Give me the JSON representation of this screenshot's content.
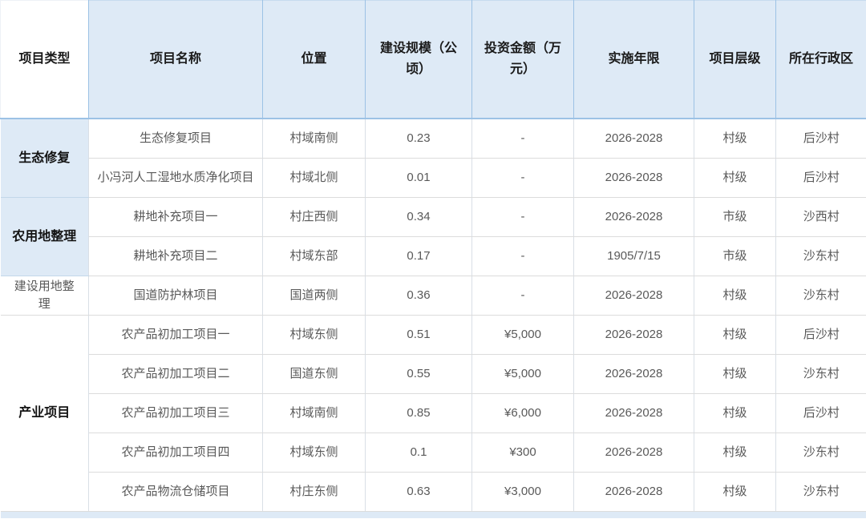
{
  "colors": {
    "header_bg": "#deeaf6",
    "header_border": "#9cc2e5",
    "grid_border": "#d9dfe6",
    "header_text": "#1a1a1a",
    "body_text": "#595959"
  },
  "table": {
    "columns": [
      "项目类型",
      "项目名称",
      "位置",
      "建设规模（公顷）",
      "投资金额（万元）",
      "实施年限",
      "项目层级",
      "所在行政区"
    ],
    "groups": [
      {
        "type": "生态修复",
        "background": "blue",
        "bold": true,
        "rows": [
          {
            "name": "生态修复项目",
            "location": "村域南侧",
            "scale": "0.23",
            "investment": "-",
            "period": "2026-2028",
            "level": "村级",
            "district": "后沙村"
          },
          {
            "name": "小冯河人工湿地水质净化项目",
            "location": "村域北侧",
            "scale": "0.01",
            "investment": "-",
            "period": "2026-2028",
            "level": "村级",
            "district": "后沙村"
          }
        ]
      },
      {
        "type": "农用地整理",
        "background": "blue",
        "bold": true,
        "rows": [
          {
            "name": "耕地补充项目一",
            "location": "村庄西侧",
            "scale": "0.34",
            "investment": "-",
            "period": "2026-2028",
            "level": "市级",
            "district": "沙西村"
          },
          {
            "name": "耕地补充项目二",
            "location": "村域东部",
            "scale": "0.17",
            "investment": "-",
            "period": "1905/7/15",
            "level": "市级",
            "district": "沙东村"
          }
        ]
      },
      {
        "type": "建设用地整理",
        "background": "white",
        "bold": false,
        "rows": [
          {
            "name": "国道防护林项目",
            "location": "国道两侧",
            "scale": "0.36",
            "investment": "-",
            "period": "2026-2028",
            "level": "村级",
            "district": "沙东村"
          }
        ]
      },
      {
        "type": "产业项目",
        "background": "white",
        "bold": true,
        "rows": [
          {
            "name": "农产品初加工项目一",
            "location": "村域东侧",
            "scale": "0.51",
            "investment": "¥5,000",
            "period": "2026-2028",
            "level": "村级",
            "district": "后沙村"
          },
          {
            "name": "农产品初加工项目二",
            "location": "国道东侧",
            "scale": "0.55",
            "investment": "¥5,000",
            "period": "2026-2028",
            "level": "村级",
            "district": "沙东村"
          },
          {
            "name": "农产品初加工项目三",
            "location": "村域南侧",
            "scale": "0.85",
            "investment": "¥6,000",
            "period": "2026-2028",
            "level": "村级",
            "district": "后沙村"
          },
          {
            "name": "农产品初加工项目四",
            "location": "村域东侧",
            "scale": "0.1",
            "investment": "¥300",
            "period": "2026-2028",
            "level": "村级",
            "district": "沙东村"
          },
          {
            "name": "农产品物流仓储项目",
            "location": "村庄东侧",
            "scale": "0.63",
            "investment": "¥3,000",
            "period": "2026-2028",
            "level": "村级",
            "district": "沙东村"
          }
        ]
      }
    ]
  }
}
